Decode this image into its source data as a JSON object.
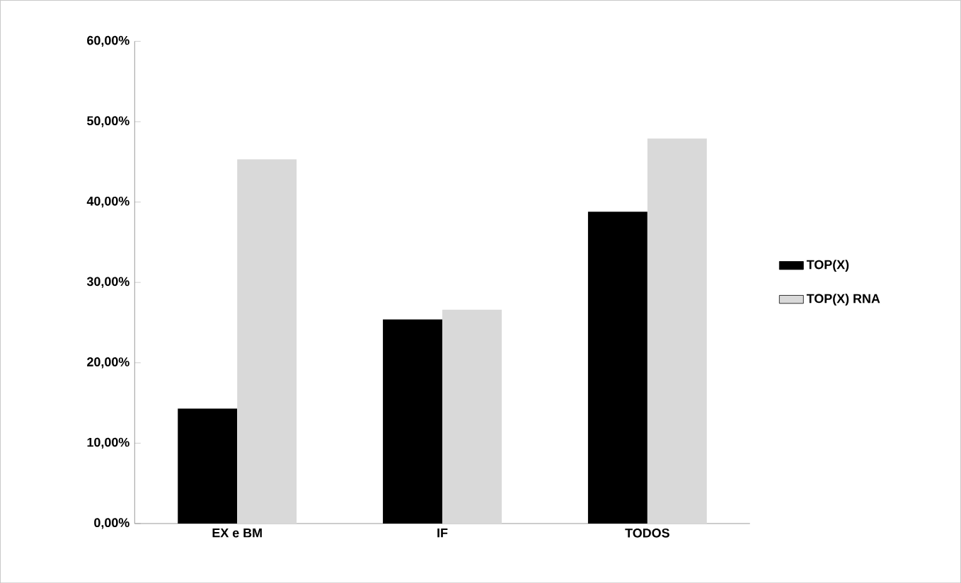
{
  "chart_data": {
    "type": "bar",
    "categories": [
      "EX e BM",
      "IF",
      "TODOS"
    ],
    "series": [
      {
        "name": "TOP(X)",
        "color": "#000000",
        "values": [
          14.3,
          25.4,
          38.8
        ]
      },
      {
        "name": "TOP(X) RNA",
        "color": "#d9d9d9",
        "values": [
          45.3,
          26.6,
          47.9
        ]
      }
    ],
    "ylim": [
      0,
      60
    ],
    "yticks": [
      {
        "value": 0,
        "label": "0,00%"
      },
      {
        "value": 10,
        "label": "10,00%"
      },
      {
        "value": 20,
        "label": "20,00%"
      },
      {
        "value": 30,
        "label": "30,00%"
      },
      {
        "value": 40,
        "label": "40,00%"
      },
      {
        "value": 50,
        "label": "50,00%"
      },
      {
        "value": 60,
        "label": "60,00%"
      }
    ],
    "grid": false,
    "legend": "right"
  }
}
